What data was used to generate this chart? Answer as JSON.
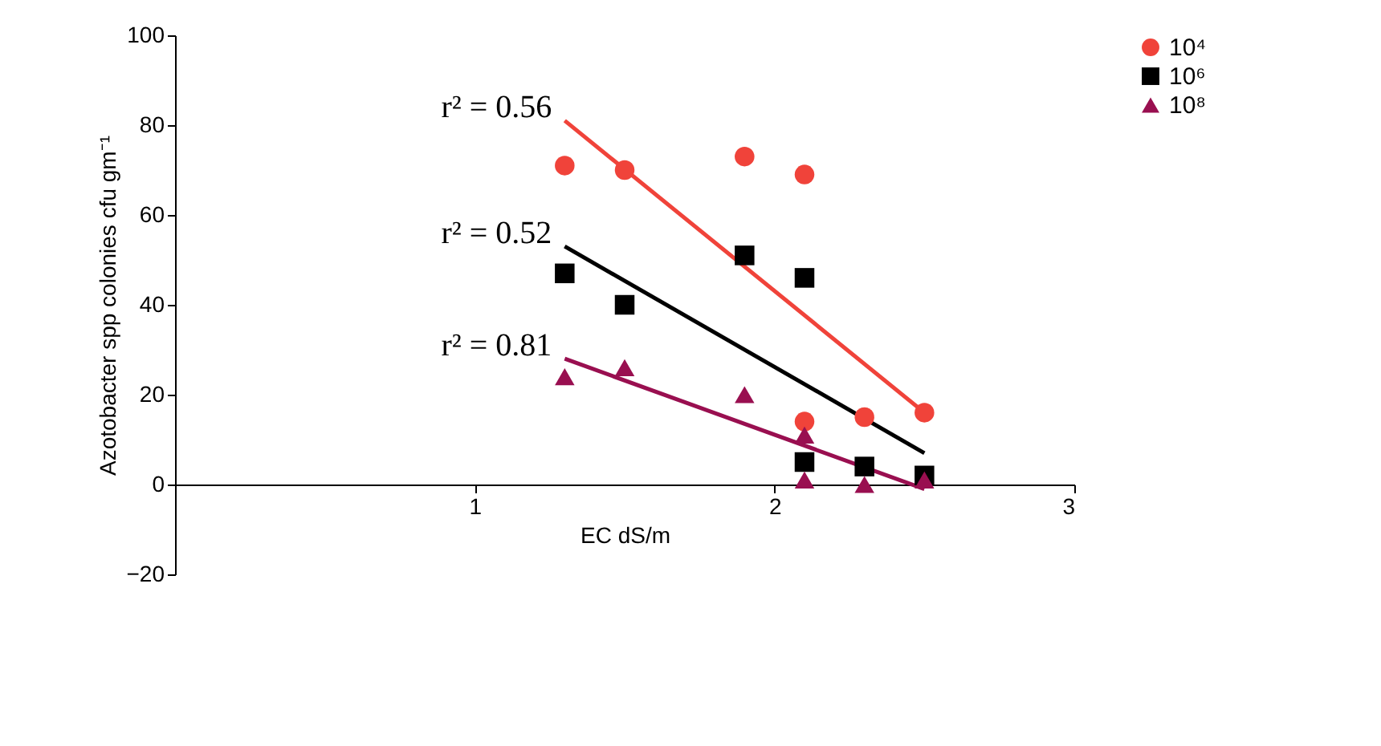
{
  "chart_data": {
    "type": "scatter",
    "xlabel": "EC dS/m",
    "ylabel": "Azotobacter spp colonies cfu gm⁻¹",
    "xlim": [
      0,
      3
    ],
    "xticks": [
      1,
      2,
      3
    ],
    "ylim": [
      -20,
      100
    ],
    "yticks": [
      -20,
      0,
      20,
      40,
      60,
      80,
      100
    ],
    "grid": false,
    "legend": "top right",
    "series": [
      {
        "name": "10⁴",
        "color": "#f0433a",
        "marker": "circle",
        "x": [
          1.3,
          1.5,
          1.9,
          2.1,
          2.1,
          2.3,
          2.5
        ],
        "values": [
          71,
          70,
          73,
          69,
          14,
          15,
          16
        ]
      },
      {
        "name": "10⁶",
        "color": "#000000",
        "marker": "square",
        "x": [
          1.3,
          1.5,
          1.9,
          2.1,
          2.1,
          2.3,
          2.5
        ],
        "values": [
          47,
          40,
          51,
          46,
          5,
          4,
          2
        ]
      },
      {
        "name": "10⁸",
        "color": "#990f50",
        "marker": "triangle",
        "x": [
          1.3,
          1.5,
          1.9,
          2.1,
          2.1,
          2.3,
          2.5
        ],
        "values": [
          24,
          26,
          20,
          11,
          1,
          0,
          1
        ]
      },
      {
        "type": "line",
        "color": "#f0433a",
        "x": [
          1.3,
          2.5
        ],
        "values": [
          81,
          16
        ]
      },
      {
        "type": "line",
        "color": "#000000",
        "x": [
          1.3,
          2.5
        ],
        "values": [
          53,
          7
        ]
      },
      {
        "type": "line",
        "color": "#990f50",
        "x": [
          1.3,
          2.5
        ],
        "values": [
          28,
          -1
        ]
      }
    ],
    "annotations": [
      "r² = 0.56",
      "r² = 0.52",
      "r² = 0.81"
    ]
  }
}
